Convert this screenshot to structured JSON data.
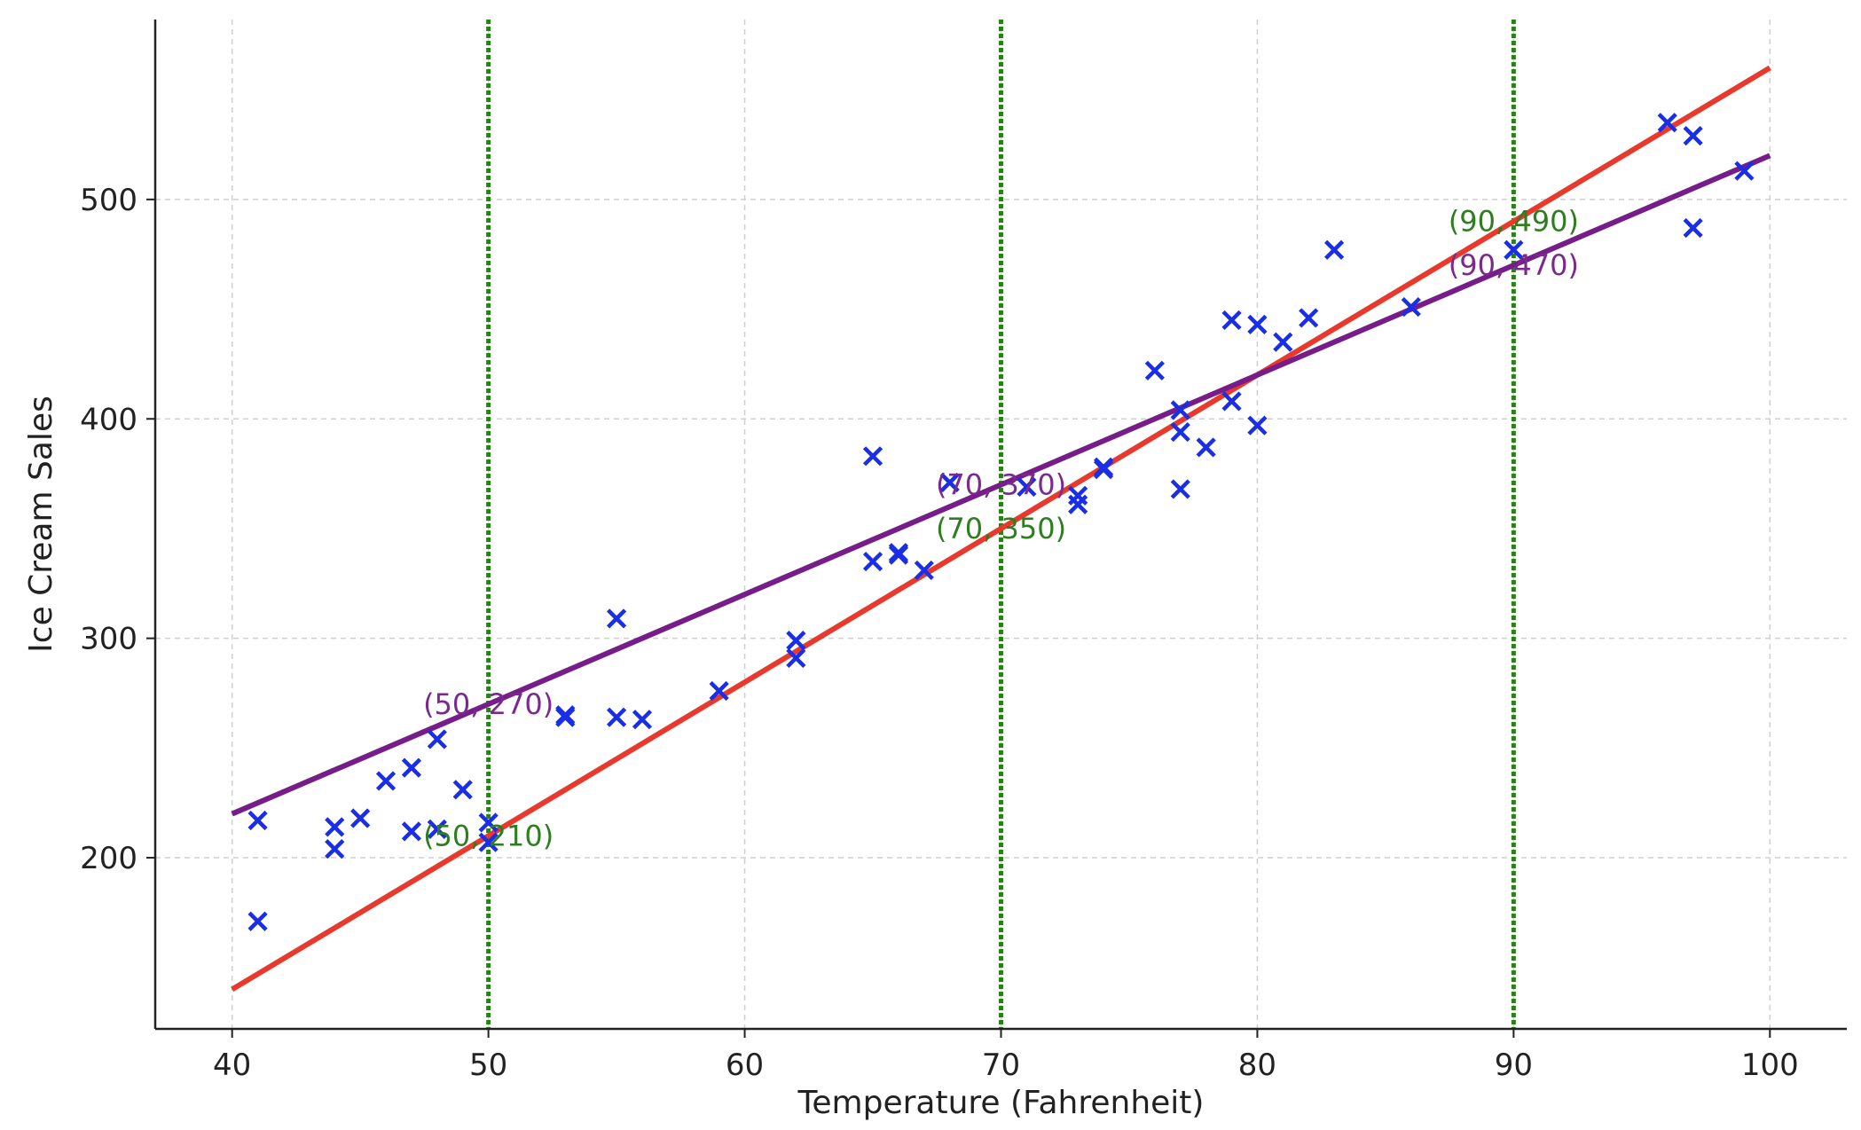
{
  "chart_data": {
    "type": "scatter",
    "title": "",
    "xlabel": "Temperature (Fahrenheit)",
    "ylabel": "Ice Cream Sales",
    "xlim": [
      37,
      103
    ],
    "ylim": [
      122,
      582
    ],
    "xticks": [
      40,
      50,
      60,
      70,
      80,
      90,
      100
    ],
    "yticks": [
      200,
      300,
      400,
      500
    ],
    "grid": true,
    "legend": "none",
    "colors": {
      "points": "#1a2ee6",
      "red_line": "#e8392d",
      "purple_line": "#761d8a",
      "vlines": "#2e7d1f",
      "purple_text": "#7a2a8c",
      "green_text": "#2e7d1f",
      "grid": "#cfcfcf",
      "axis": "#222222"
    },
    "points": [
      {
        "x": 41,
        "y": 217
      },
      {
        "x": 41,
        "y": 171
      },
      {
        "x": 44,
        "y": 214
      },
      {
        "x": 44,
        "y": 204
      },
      {
        "x": 45,
        "y": 218
      },
      {
        "x": 46,
        "y": 235
      },
      {
        "x": 47,
        "y": 241
      },
      {
        "x": 47,
        "y": 212
      },
      {
        "x": 48,
        "y": 254
      },
      {
        "x": 48,
        "y": 213
      },
      {
        "x": 49,
        "y": 231
      },
      {
        "x": 50,
        "y": 216
      },
      {
        "x": 50,
        "y": 207
      },
      {
        "x": 53,
        "y": 265
      },
      {
        "x": 53,
        "y": 264
      },
      {
        "x": 55,
        "y": 309
      },
      {
        "x": 55,
        "y": 264
      },
      {
        "x": 56,
        "y": 263
      },
      {
        "x": 59,
        "y": 276
      },
      {
        "x": 62,
        "y": 299
      },
      {
        "x": 62,
        "y": 291
      },
      {
        "x": 65,
        "y": 383
      },
      {
        "x": 65,
        "y": 335
      },
      {
        "x": 66,
        "y": 339
      },
      {
        "x": 66,
        "y": 338
      },
      {
        "x": 67,
        "y": 331
      },
      {
        "x": 68,
        "y": 371
      },
      {
        "x": 71,
        "y": 369
      },
      {
        "x": 73,
        "y": 365
      },
      {
        "x": 73,
        "y": 361
      },
      {
        "x": 74,
        "y": 378
      },
      {
        "x": 74,
        "y": 377
      },
      {
        "x": 76,
        "y": 422
      },
      {
        "x": 77,
        "y": 404
      },
      {
        "x": 77,
        "y": 394
      },
      {
        "x": 77,
        "y": 368
      },
      {
        "x": 78,
        "y": 387
      },
      {
        "x": 79,
        "y": 445
      },
      {
        "x": 79,
        "y": 408
      },
      {
        "x": 80,
        "y": 443
      },
      {
        "x": 80,
        "y": 397
      },
      {
        "x": 81,
        "y": 435
      },
      {
        "x": 82,
        "y": 446
      },
      {
        "x": 83,
        "y": 477
      },
      {
        "x": 86,
        "y": 451
      },
      {
        "x": 90,
        "y": 477
      },
      {
        "x": 96,
        "y": 535
      },
      {
        "x": 97,
        "y": 529
      },
      {
        "x": 97,
        "y": 487
      },
      {
        "x": 99,
        "y": 513
      }
    ],
    "lines": [
      {
        "id": "red",
        "x": [
          40,
          100
        ],
        "y": [
          140,
          560
        ]
      },
      {
        "id": "purple",
        "x": [
          40,
          100
        ],
        "y": [
          220,
          520
        ]
      }
    ],
    "vlines": [
      50,
      70,
      90
    ],
    "annotations": [
      {
        "text": "(50, 270)",
        "x": 50,
        "y": 270,
        "color": "purple"
      },
      {
        "text": "(50, 210)",
        "x": 50,
        "y": 210,
        "color": "green"
      },
      {
        "text": "(70, 370)",
        "x": 70,
        "y": 370,
        "color": "purple"
      },
      {
        "text": "(70, 350)",
        "x": 70,
        "y": 350,
        "color": "green"
      },
      {
        "text": "(90, 470)",
        "x": 90,
        "y": 470,
        "color": "purple"
      },
      {
        "text": "(90, 490)",
        "x": 90,
        "y": 490,
        "color": "green"
      }
    ]
  }
}
